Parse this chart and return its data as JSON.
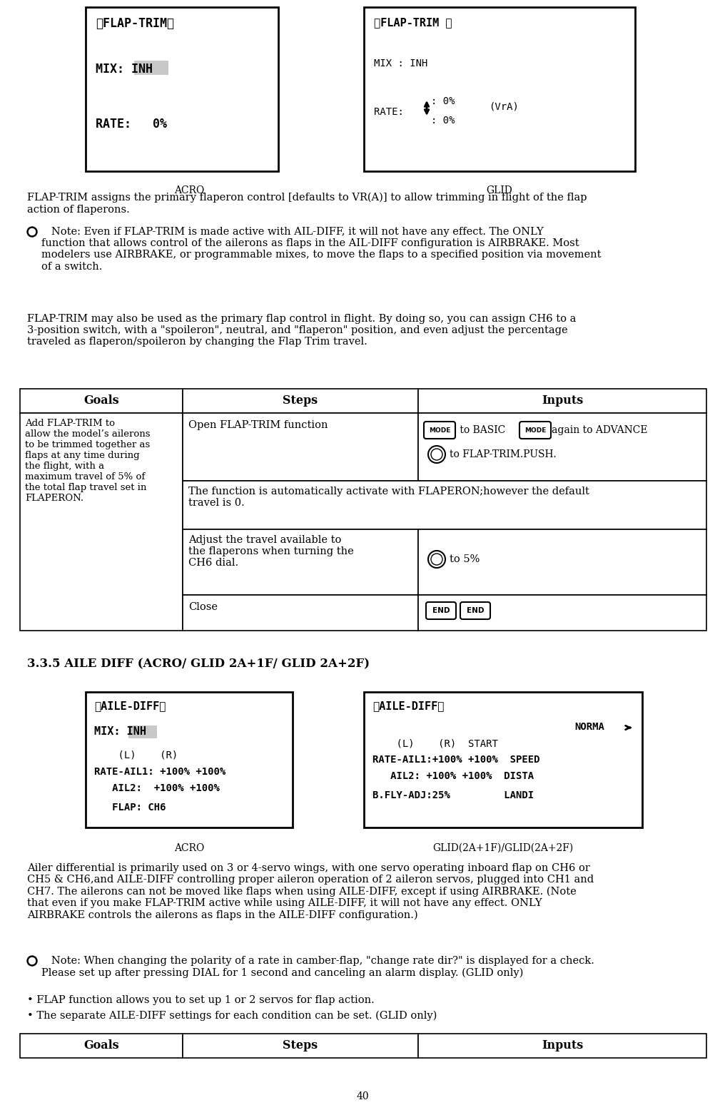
{
  "page_number": "40",
  "bg_color": "#ffffff",
  "text_color": "#000000",
  "section_title": "3.3.5 AILE DIFF (ACRO/ GLID 2A+1F/ GLID 2A+2F)",
  "acro_label": "ACRO",
  "glid_label": "GLID",
  "acro_box": {
    "title": "【FLAP-TRIM】",
    "line1": "MIX: INH",
    "line2": "RATE:   0%"
  },
  "glid_box": {
    "title": "【FLAP-TRIM 】",
    "line1": "MIX : INH",
    "line2_label": "RATE:",
    "line2_up": ": 0%",
    "line2_down": ": 0%",
    "line2_vra": "(VrA)"
  },
  "para1": "FLAP-TRIM assigns the primary flaperon control [defaults to VR(A)] to allow trimming in flight of the flap\naction of flaperons.",
  "note1_prefix": "   Note: Even if FLAP-TRIM is made active with AIL-DIFF, it will not have any effect. The ONLY\nfunction that allows control of the ailerons as flaps in the AIL-DIFF configuration is AIRBRAKE. Most\nmodelers use AIRBRAKE, or programmable mixes, to move the flaps to a specified position via movement\nof a switch.",
  "para2": "FLAP-TRIM may also be used as the primary flap control in flight. By doing so, you can assign CH6 to a\n3-position switch, with a \"spoileron\", neutral, and \"flaperon\" position, and even adjust the percentage\ntraveled as flaperon/spoileron by changing the Flap Trim travel.",
  "tbl1_goal": "Add FLAP-TRIM to\nallow the model’s ailerons\nto be trimmed together as\nflaps at any time during\nthe flight, with a\nmaximum travel of 5% of\nthe total flap travel set in\nFLAPERON.",
  "tbl1_step0": "Open FLAP-TRIM function",
  "tbl1_step1": "The function is automatically activate with FLAPERON;however the default\ntravel is 0.",
  "tbl1_step2": "Adjust the travel available to\nthe flaperons when turning the\nCH6 dial.",
  "tbl1_step3": "Close",
  "acro_label2": "ACRO",
  "glid_label2": "GLID(2A+1F)/GLID(2A+2F)",
  "acro_box2": {
    "title": "《AILE-DIFF》",
    "line1": "MIX: INH",
    "line2": "    (L)    (R)",
    "line3": "RATE-AIL1: +100% +100%",
    "line4": "   AIL2:  +100% +100%",
    "line5": "   FLAP: CH6"
  },
  "glid_box2": {
    "title": "《AILE-DIFF》",
    "line1": "                  NORMA←",
    "line2": "    (L)    (R)  START",
    "line3": "RATE-AIL1:+100% +100%  SPEED",
    "line4": "   AIL2: +100% +100%  DISTA",
    "line5": "B.FLY-ADJ:25%         LANDI"
  },
  "para3": "Ailer differential is primarily used on 3 or 4-servo wings, with one servo operating inboard flap on CH6 or\nCH5 & CH6,and AILE-DIFF controlling proper aileron operation of 2 aileron servos, plugged into CH1 and\nCH7. The ailerons can not be moved like flaps when using AILE-DIFF, except if using AIRBRAKE. (Note\nthat even if you make FLAP-TRIM active while using AILE-DIFF, it will not have any effect. ONLY\nAIRBRAKE controls the ailerons as flaps in the AILE-DIFF configuration.)",
  "note2": "   Note: When changing the polarity of a rate in camber-flap, \"change rate dir?\" is displayed for a check.\nPlease set up after pressing DIAL for 1 second and canceling an alarm display. (GLID only)",
  "bullet1": "• FLAP function allows you to set up 1 or 2 servos for flap action.",
  "bullet2": "• The separate AILE-DIFF settings for each condition can be set. (GLID only)"
}
